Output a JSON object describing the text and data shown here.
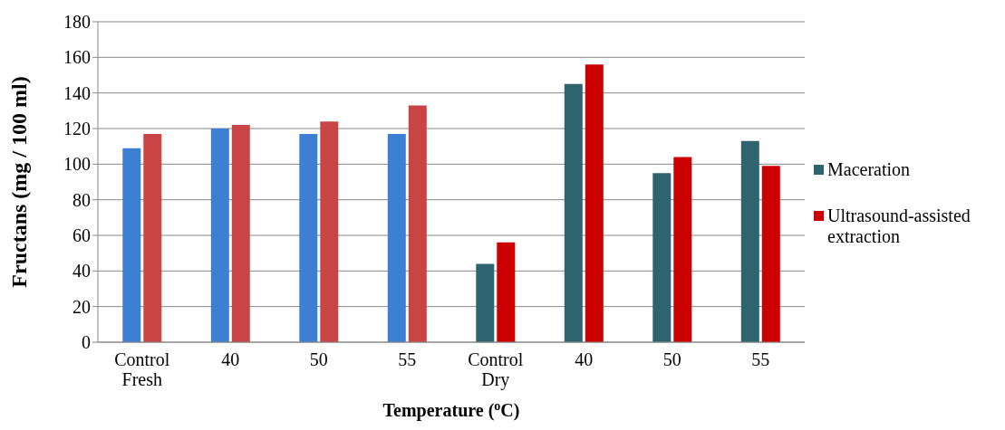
{
  "chart_data": {
    "type": "bar",
    "xlabel": "Temperature ($^{o}$C)",
    "ylabel": "Fructans (mg / 100 ml)",
    "categories": [
      "Control Fresh",
      "40",
      "50",
      "55",
      "Control Dry",
      "40",
      "50",
      "55"
    ],
    "series": [
      {
        "name": "Maceration",
        "color": "#2e6470",
        "colors": [
          "#3d7fd3",
          "#3d7fd3",
          "#3d7fd3",
          "#3d7fd3",
          "#2e6470",
          "#2e6470",
          "#2e6470",
          "#2e6470"
        ],
        "values": [
          109,
          120,
          117,
          117,
          44,
          145,
          95,
          113
        ]
      },
      {
        "name": "Ultrasound-assisted extraction",
        "color": "#cc0000",
        "colors": [
          "#c94444",
          "#c94444",
          "#c94444",
          "#c94444",
          "#cc0000",
          "#cc0000",
          "#cc0000",
          "#cc0000"
        ],
        "values": [
          117,
          122,
          124,
          133,
          56,
          156,
          104,
          99
        ]
      }
    ],
    "ylim": [
      0,
      180
    ],
    "yticks": [
      0,
      20,
      40,
      60,
      80,
      100,
      120,
      140,
      160,
      180
    ],
    "grid": "y",
    "legend": "right"
  }
}
